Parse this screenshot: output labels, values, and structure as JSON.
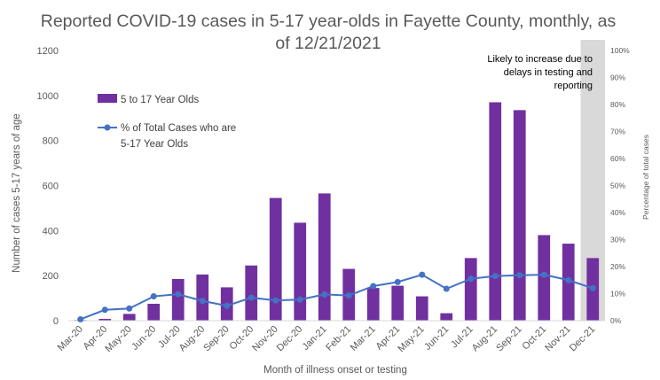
{
  "chart_data": {
    "type": "bar",
    "title_line1": "Reported COVID-19 cases in 5-17 year-olds in Fayette County, monthly, as",
    "title_line2": "of 12/21/2021",
    "xlabel": "Month of illness onset or testing",
    "ylabel": "Number of cases 5-17 years of age",
    "y2label": "Percentage of total cases",
    "ylim": [
      0,
      1200
    ],
    "y2lim": [
      0,
      100
    ],
    "yticks": [
      "0",
      "200",
      "400",
      "600",
      "800",
      "1000",
      "1200"
    ],
    "y2ticks": [
      "0%",
      "10%",
      "20%",
      "30%",
      "40%",
      "50%",
      "60%",
      "70%",
      "80%",
      "90%",
      "100%"
    ],
    "categories": [
      "Mar-20",
      "Apr-20",
      "May-20",
      "Jun-20",
      "Jul-20",
      "Aug-20",
      "Sep-20",
      "Oct-20",
      "Nov-20",
      "Dec-20",
      "Jan-21",
      "Feb-21",
      "Mar-21",
      "Apr-21",
      "May-21",
      "Jun-21",
      "Jul-21",
      "Aug-21",
      "Sep-21",
      "Oct-21",
      "Nov-21",
      "Dec-21"
    ],
    "series": [
      {
        "name": "5 to 17 Year Olds",
        "kind": "bar",
        "axis": "left",
        "color": "#7030A0",
        "values": [
          3,
          8,
          30,
          75,
          185,
          205,
          148,
          245,
          545,
          435,
          565,
          230,
          145,
          155,
          108,
          33,
          278,
          970,
          935,
          380,
          342,
          278
        ]
      },
      {
        "name": "% of Total Cases who are 5-17 Year Olds",
        "name_line1": "% of Total Cases who are",
        "name_line2": "5-17 Year Olds",
        "kind": "line",
        "axis": "right",
        "color": "#4472C4",
        "values": [
          0.5,
          4,
          4.5,
          9,
          9.8,
          7.3,
          5.5,
          8.5,
          7.5,
          7.8,
          9.7,
          9.3,
          12.8,
          14.3,
          17,
          11.8,
          15.5,
          16.5,
          16.8,
          17,
          15,
          12
        ]
      }
    ],
    "shaded_region": {
      "category": "Dec-21",
      "color": "#d9d9d9",
      "note_lines": [
        "Likely to increase due to",
        "delays in testing and",
        "reporting"
      ]
    },
    "legend": "top-left",
    "grid": false
  }
}
